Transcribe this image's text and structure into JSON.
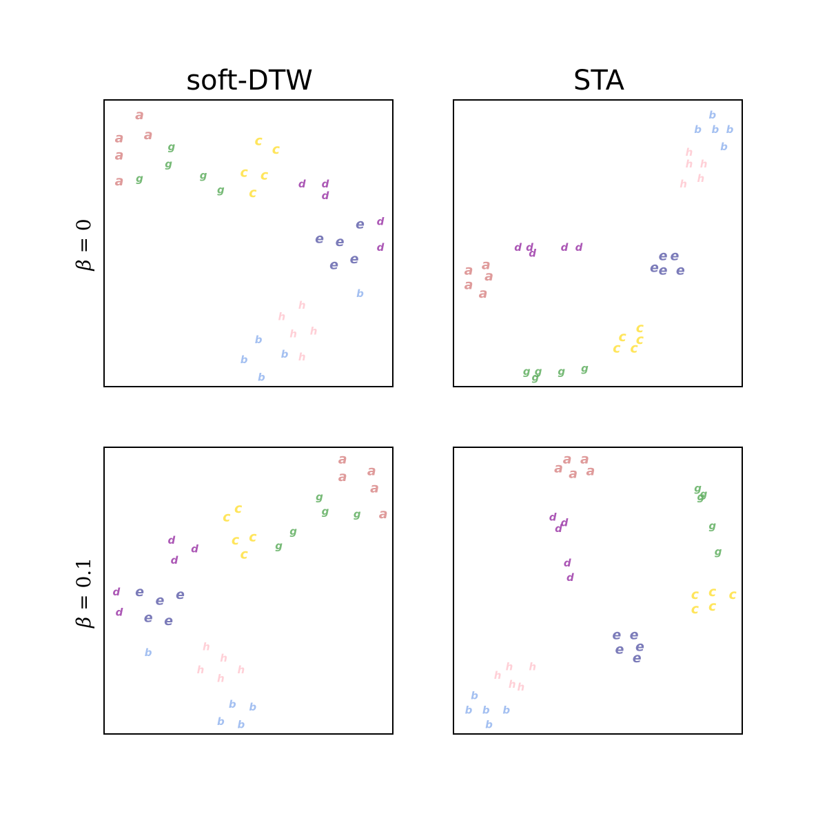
{
  "columns": [
    "soft-DTW",
    "STA"
  ],
  "rows": [
    {
      "label_greek": "β",
      "label_rest": " = 0"
    },
    {
      "label_greek": "β",
      "label_rest": " = 0.1"
    }
  ],
  "classes": {
    "a": "#d98a8a",
    "b": "#94b5ee",
    "c": "#ffe040",
    "d": "#9c3aa8",
    "e": "#6464ad",
    "g": "#5fae5f",
    "h": "#ffc8d0"
  },
  "chart_data": [
    {
      "type": "scatter",
      "title": "soft-DTW",
      "row": "β = 0",
      "xlim": [
        0,
        1
      ],
      "ylim": [
        0,
        1
      ],
      "points": [
        [
          "a",
          0.12,
          0.95
        ],
        [
          "a",
          0.05,
          0.87
        ],
        [
          "a",
          0.15,
          0.88
        ],
        [
          "a",
          0.05,
          0.81
        ],
        [
          "a",
          0.05,
          0.72
        ],
        [
          "g",
          0.23,
          0.84
        ],
        [
          "g",
          0.22,
          0.78
        ],
        [
          "g",
          0.12,
          0.73
        ],
        [
          "g",
          0.34,
          0.74
        ],
        [
          "g",
          0.4,
          0.69
        ],
        [
          "c",
          0.53,
          0.86
        ],
        [
          "c",
          0.59,
          0.83
        ],
        [
          "c",
          0.48,
          0.75
        ],
        [
          "c",
          0.55,
          0.74
        ],
        [
          "c",
          0.51,
          0.68
        ],
        [
          "d",
          0.76,
          0.71
        ],
        [
          "d",
          0.76,
          0.67
        ],
        [
          "d",
          0.68,
          0.71
        ],
        [
          "d",
          0.95,
          0.58
        ],
        [
          "d",
          0.95,
          0.49
        ],
        [
          "e",
          0.88,
          0.57
        ],
        [
          "e",
          0.74,
          0.52
        ],
        [
          "e",
          0.81,
          0.51
        ],
        [
          "e",
          0.86,
          0.45
        ],
        [
          "e",
          0.79,
          0.43
        ],
        [
          "b",
          0.88,
          0.33
        ],
        [
          "b",
          0.53,
          0.17
        ],
        [
          "b",
          0.62,
          0.12
        ],
        [
          "b",
          0.48,
          0.1
        ],
        [
          "b",
          0.54,
          0.04
        ],
        [
          "h",
          0.68,
          0.29
        ],
        [
          "h",
          0.61,
          0.25
        ],
        [
          "h",
          0.72,
          0.2
        ],
        [
          "h",
          0.65,
          0.19
        ],
        [
          "h",
          0.68,
          0.11
        ]
      ]
    },
    {
      "type": "scatter",
      "title": "STA",
      "row": "β = 0",
      "xlim": [
        0,
        1
      ],
      "ylim": [
        0,
        1
      ],
      "points": [
        [
          "b",
          0.89,
          0.95
        ],
        [
          "b",
          0.84,
          0.9
        ],
        [
          "b",
          0.9,
          0.9
        ],
        [
          "b",
          0.95,
          0.9
        ],
        [
          "b",
          0.93,
          0.84
        ],
        [
          "h",
          0.81,
          0.82
        ],
        [
          "h",
          0.81,
          0.78
        ],
        [
          "h",
          0.86,
          0.78
        ],
        [
          "h",
          0.85,
          0.73
        ],
        [
          "h",
          0.79,
          0.71
        ],
        [
          "d",
          0.22,
          0.49
        ],
        [
          "d",
          0.26,
          0.49
        ],
        [
          "d",
          0.27,
          0.47
        ],
        [
          "d",
          0.38,
          0.49
        ],
        [
          "d",
          0.43,
          0.49
        ],
        [
          "e",
          0.72,
          0.46
        ],
        [
          "e",
          0.76,
          0.46
        ],
        [
          "e",
          0.69,
          0.42
        ],
        [
          "e",
          0.72,
          0.41
        ],
        [
          "e",
          0.78,
          0.41
        ],
        [
          "a",
          0.05,
          0.41
        ],
        [
          "a",
          0.11,
          0.43
        ],
        [
          "a",
          0.12,
          0.39
        ],
        [
          "a",
          0.05,
          0.36
        ],
        [
          "a",
          0.1,
          0.33
        ],
        [
          "c",
          0.64,
          0.21
        ],
        [
          "c",
          0.58,
          0.18
        ],
        [
          "c",
          0.64,
          0.17
        ],
        [
          "c",
          0.56,
          0.14
        ],
        [
          "c",
          0.62,
          0.14
        ],
        [
          "g",
          0.25,
          0.06
        ],
        [
          "g",
          0.29,
          0.06
        ],
        [
          "g",
          0.28,
          0.04
        ],
        [
          "g",
          0.37,
          0.06
        ],
        [
          "g",
          0.45,
          0.07
        ]
      ]
    },
    {
      "type": "scatter",
      "title": "soft-DTW",
      "row": "β = 0.1",
      "xlim": [
        0,
        1
      ],
      "ylim": [
        0,
        1
      ],
      "points": [
        [
          "a",
          0.82,
          0.96
        ],
        [
          "a",
          0.82,
          0.9
        ],
        [
          "a",
          0.92,
          0.92
        ],
        [
          "a",
          0.93,
          0.86
        ],
        [
          "a",
          0.96,
          0.77
        ],
        [
          "g",
          0.74,
          0.83
        ],
        [
          "g",
          0.76,
          0.78
        ],
        [
          "g",
          0.87,
          0.77
        ],
        [
          "g",
          0.65,
          0.71
        ],
        [
          "g",
          0.6,
          0.66
        ],
        [
          "c",
          0.42,
          0.76
        ],
        [
          "c",
          0.46,
          0.79
        ],
        [
          "c",
          0.45,
          0.68
        ],
        [
          "c",
          0.51,
          0.69
        ],
        [
          "c",
          0.48,
          0.63
        ],
        [
          "d",
          0.23,
          0.68
        ],
        [
          "d",
          0.31,
          0.65
        ],
        [
          "d",
          0.24,
          0.61
        ],
        [
          "d",
          0.04,
          0.5
        ],
        [
          "d",
          0.05,
          0.43
        ],
        [
          "e",
          0.12,
          0.5
        ],
        [
          "e",
          0.19,
          0.47
        ],
        [
          "e",
          0.26,
          0.49
        ],
        [
          "e",
          0.15,
          0.41
        ],
        [
          "e",
          0.22,
          0.4
        ],
        [
          "b",
          0.15,
          0.29
        ],
        [
          "b",
          0.44,
          0.11
        ],
        [
          "b",
          0.51,
          0.1
        ],
        [
          "b",
          0.4,
          0.05
        ],
        [
          "b",
          0.47,
          0.04
        ],
        [
          "h",
          0.35,
          0.31
        ],
        [
          "h",
          0.41,
          0.27
        ],
        [
          "h",
          0.33,
          0.23
        ],
        [
          "h",
          0.4,
          0.2
        ],
        [
          "h",
          0.47,
          0.23
        ]
      ]
    },
    {
      "type": "scatter",
      "title": "STA",
      "row": "β = 0.1",
      "xlim": [
        0,
        1
      ],
      "ylim": [
        0,
        1
      ],
      "points": [
        [
          "a",
          0.39,
          0.96
        ],
        [
          "a",
          0.45,
          0.96
        ],
        [
          "a",
          0.36,
          0.93
        ],
        [
          "a",
          0.41,
          0.91
        ],
        [
          "a",
          0.47,
          0.92
        ],
        [
          "g",
          0.84,
          0.86
        ],
        [
          "g",
          0.86,
          0.84
        ],
        [
          "g",
          0.85,
          0.83
        ],
        [
          "g",
          0.89,
          0.73
        ],
        [
          "g",
          0.91,
          0.64
        ],
        [
          "d",
          0.34,
          0.76
        ],
        [
          "d",
          0.38,
          0.74
        ],
        [
          "d",
          0.36,
          0.72
        ],
        [
          "d",
          0.39,
          0.6
        ],
        [
          "d",
          0.4,
          0.55
        ],
        [
          "c",
          0.83,
          0.49
        ],
        [
          "c",
          0.89,
          0.5
        ],
        [
          "c",
          0.96,
          0.49
        ],
        [
          "c",
          0.83,
          0.44
        ],
        [
          "c",
          0.89,
          0.45
        ],
        [
          "e",
          0.56,
          0.35
        ],
        [
          "e",
          0.62,
          0.35
        ],
        [
          "e",
          0.57,
          0.3
        ],
        [
          "e",
          0.64,
          0.31
        ],
        [
          "e",
          0.63,
          0.27
        ],
        [
          "h",
          0.19,
          0.24
        ],
        [
          "h",
          0.27,
          0.24
        ],
        [
          "h",
          0.15,
          0.21
        ],
        [
          "h",
          0.2,
          0.18
        ],
        [
          "h",
          0.23,
          0.17
        ],
        [
          "b",
          0.07,
          0.14
        ],
        [
          "b",
          0.05,
          0.09
        ],
        [
          "b",
          0.11,
          0.09
        ],
        [
          "b",
          0.18,
          0.09
        ],
        [
          "b",
          0.12,
          0.04
        ]
      ]
    }
  ]
}
